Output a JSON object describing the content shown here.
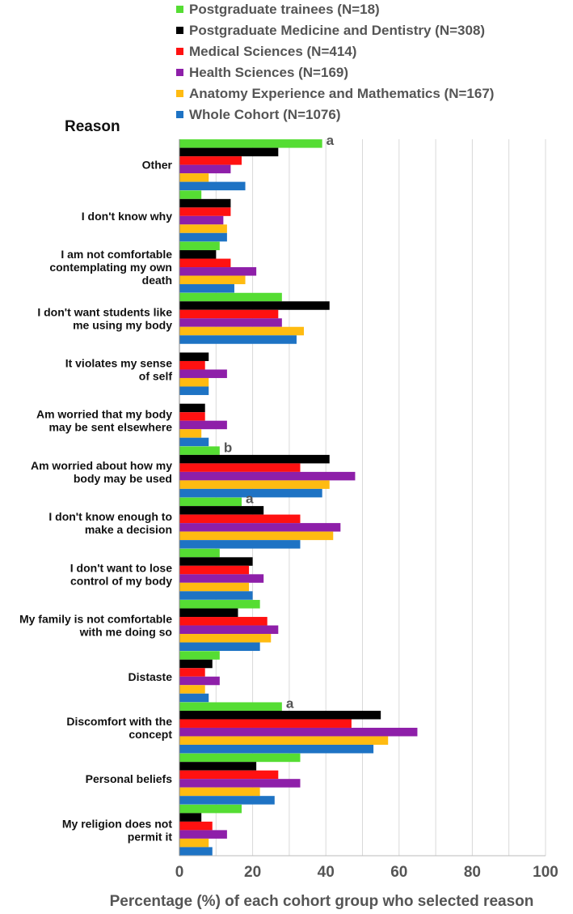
{
  "chart_data": {
    "type": "bar",
    "orientation": "horizontal",
    "ylabel": "Reason",
    "xlabel": "Percentage (%) of each cohort group who selected reason",
    "xlim": [
      0,
      100
    ],
    "xticks": [
      "0",
      "20",
      "40",
      "60",
      "80",
      "100"
    ],
    "grid": true,
    "legend_position": "top",
    "categories": [
      [
        "Other"
      ],
      [
        "I don't know why"
      ],
      [
        "I am not comfortable",
        "contemplating my own",
        "death"
      ],
      [
        "I don't want students like",
        "me using my body"
      ],
      [
        "It violates my sense",
        "of self"
      ],
      [
        "Am worried that my body",
        "may be sent elsewhere"
      ],
      [
        "Am worried about how my",
        "body may be used"
      ],
      [
        "I don't know enough to",
        "make a decision"
      ],
      [
        "I don't want to lose",
        "control of my body"
      ],
      [
        "My family is not comfortable",
        "with me doing so"
      ],
      [
        "Distaste"
      ],
      [
        "Discomfort with the",
        "concept"
      ],
      [
        "Personal beliefs"
      ],
      [
        "My religion does not",
        "permit it"
      ]
    ],
    "series": [
      {
        "name": "Postgraduate trainees (N=18)",
        "color": "#55dd33",
        "values": [
          39,
          6,
          11,
          28,
          0,
          0,
          11,
          17,
          11,
          22,
          11,
          28,
          33,
          17
        ]
      },
      {
        "name": "Postgraduate Medicine and Dentistry (N=308)",
        "color": "#000000",
        "values": [
          27,
          14,
          10,
          41,
          8,
          7,
          41,
          23,
          20,
          16,
          9,
          55,
          21,
          6
        ]
      },
      {
        "name": "Medical Sciences (N=414)",
        "color": "#ff1111",
        "values": [
          17,
          14,
          14,
          27,
          7,
          7,
          33,
          33,
          19,
          24,
          7,
          47,
          27,
          9
        ]
      },
      {
        "name": "Health Sciences (N=169)",
        "color": "#8e1fa9",
        "values": [
          14,
          12,
          21,
          28,
          13,
          13,
          48,
          44,
          23,
          27,
          11,
          65,
          33,
          13
        ]
      },
      {
        "name": "Anatomy Experience and Mathematics (N=167)",
        "color": "#ffbb11",
        "values": [
          8,
          13,
          18,
          34,
          8,
          6,
          41,
          42,
          19,
          25,
          7,
          57,
          22,
          8
        ]
      },
      {
        "name": "Whole Cohort (N=1076)",
        "color": "#1e73c4",
        "values": [
          18,
          13,
          15,
          32,
          8,
          8,
          39,
          33,
          20,
          22,
          8,
          53,
          26,
          9
        ]
      }
    ],
    "annotations": [
      {
        "category_index": 0,
        "text": "a"
      },
      {
        "category_index": 6,
        "text": "b"
      },
      {
        "category_index": 7,
        "text": "a"
      },
      {
        "category_index": 11,
        "text": "a"
      }
    ]
  }
}
